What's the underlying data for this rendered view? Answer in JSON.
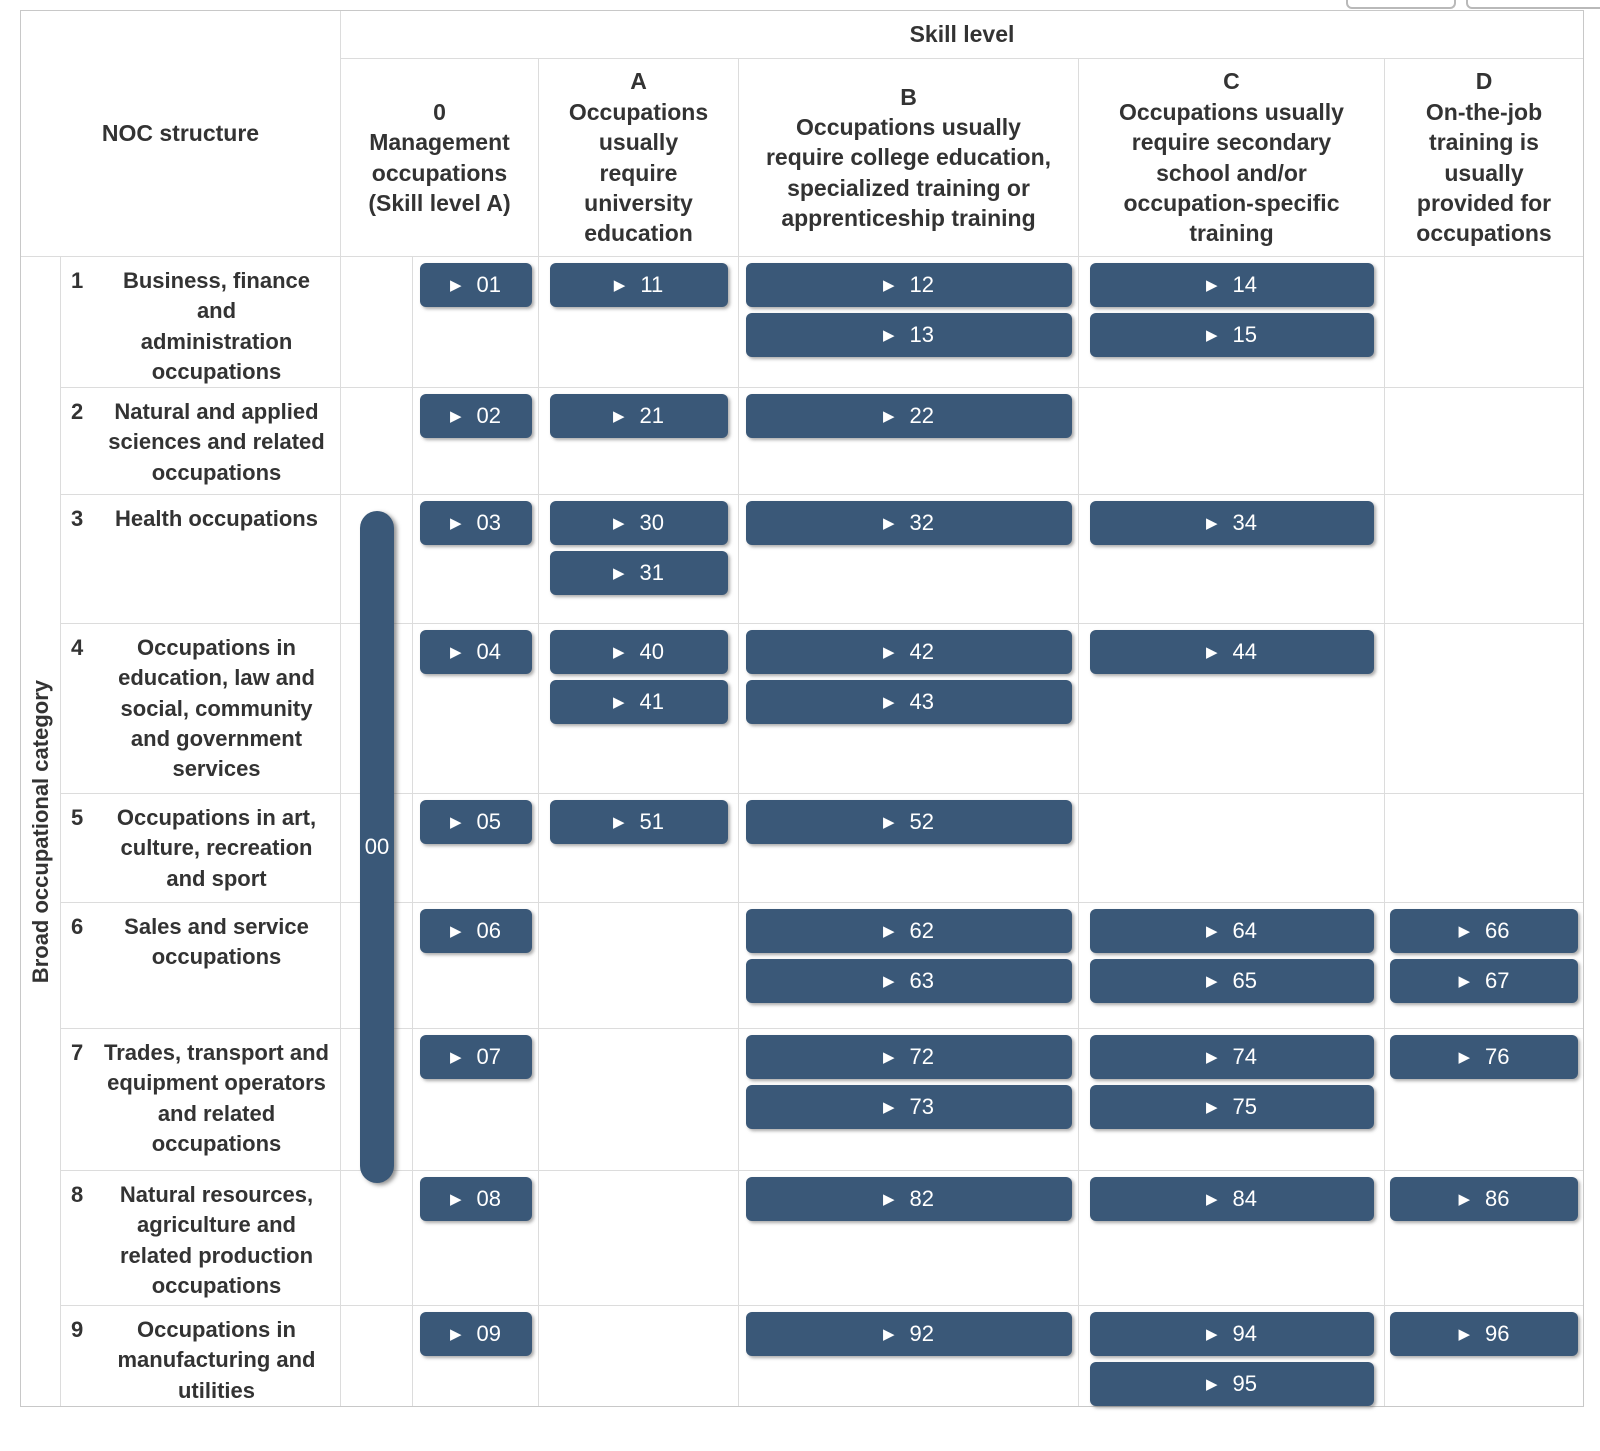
{
  "icons": {
    "play": "▶"
  },
  "colors": {
    "button_bg": "#3a5878",
    "grid_line": "#dcdcdc",
    "text": "#333333"
  },
  "side_label": "Broad occupational category",
  "header": {
    "noc_structure_label": "NOC structure",
    "skill_level_label": "Skill level",
    "columns": [
      {
        "key": "0",
        "label": "0\nManagement\noccupations\n(Skill level A)"
      },
      {
        "key": "A",
        "label": "A\nOccupations\nusually\nrequire\nuniversity\neducation"
      },
      {
        "key": "B",
        "label": "B\nOccupations usually\nrequire college education,\nspecialized training or\napprenticeship training"
      },
      {
        "key": "C",
        "label": "C\nOccupations usually\nrequire secondary\nschool and/or\noccupation-specific\ntraining"
      },
      {
        "key": "D",
        "label": "D\nOn-the-job\ntraining is\nusually\nprovided for\noccupations"
      }
    ]
  },
  "senior_management_button": {
    "label": "00"
  },
  "rows": [
    {
      "num": "1",
      "label": "Business, finance and\nadministration\noccupations",
      "cells": {
        "0": [
          "01"
        ],
        "A": [
          "11"
        ],
        "B": [
          "12",
          "13"
        ],
        "C": [
          "14",
          "15"
        ],
        "D": []
      }
    },
    {
      "num": "2",
      "label": "Natural and applied\nsciences and related\noccupations",
      "cells": {
        "0": [
          "02"
        ],
        "A": [
          "21"
        ],
        "B": [
          "22"
        ],
        "C": [],
        "D": []
      }
    },
    {
      "num": "3",
      "label": "Health occupations",
      "cells": {
        "0": [
          "03"
        ],
        "A": [
          "30",
          "31"
        ],
        "B": [
          "32"
        ],
        "C": [
          "34"
        ],
        "D": []
      }
    },
    {
      "num": "4",
      "label": "Occupations in\neducation, law and\nsocial, community\nand government\nservices",
      "cells": {
        "0": [
          "04"
        ],
        "A": [
          "40",
          "41"
        ],
        "B": [
          "42",
          "43"
        ],
        "C": [
          "44"
        ],
        "D": []
      }
    },
    {
      "num": "5",
      "label": "Occupations in art,\nculture, recreation\nand sport",
      "cells": {
        "0": [
          "05"
        ],
        "A": [
          "51"
        ],
        "B": [
          "52"
        ],
        "C": [],
        "D": []
      }
    },
    {
      "num": "6",
      "label": "Sales and service\noccupations",
      "cells": {
        "0": [
          "06"
        ],
        "A": [],
        "B": [
          "62",
          "63"
        ],
        "C": [
          "64",
          "65"
        ],
        "D": [
          "66",
          "67"
        ]
      }
    },
    {
      "num": "7",
      "label": "Trades, transport and\nequipment operators\nand related\noccupations",
      "cells": {
        "0": [
          "07"
        ],
        "A": [],
        "B": [
          "72",
          "73"
        ],
        "C": [
          "74",
          "75"
        ],
        "D": [
          "76"
        ]
      }
    },
    {
      "num": "8",
      "label": "Natural resources,\nagriculture and\nrelated production\noccupations",
      "cells": {
        "0": [
          "08"
        ],
        "A": [],
        "B": [
          "82"
        ],
        "C": [
          "84"
        ],
        "D": [
          "86"
        ]
      }
    },
    {
      "num": "9",
      "label": "Occupations in\nmanufacturing and\nutilities",
      "cells": {
        "0": [
          "09"
        ],
        "A": [],
        "B": [
          "92"
        ],
        "C": [
          "94",
          "95"
        ],
        "D": [
          "96"
        ]
      }
    }
  ]
}
